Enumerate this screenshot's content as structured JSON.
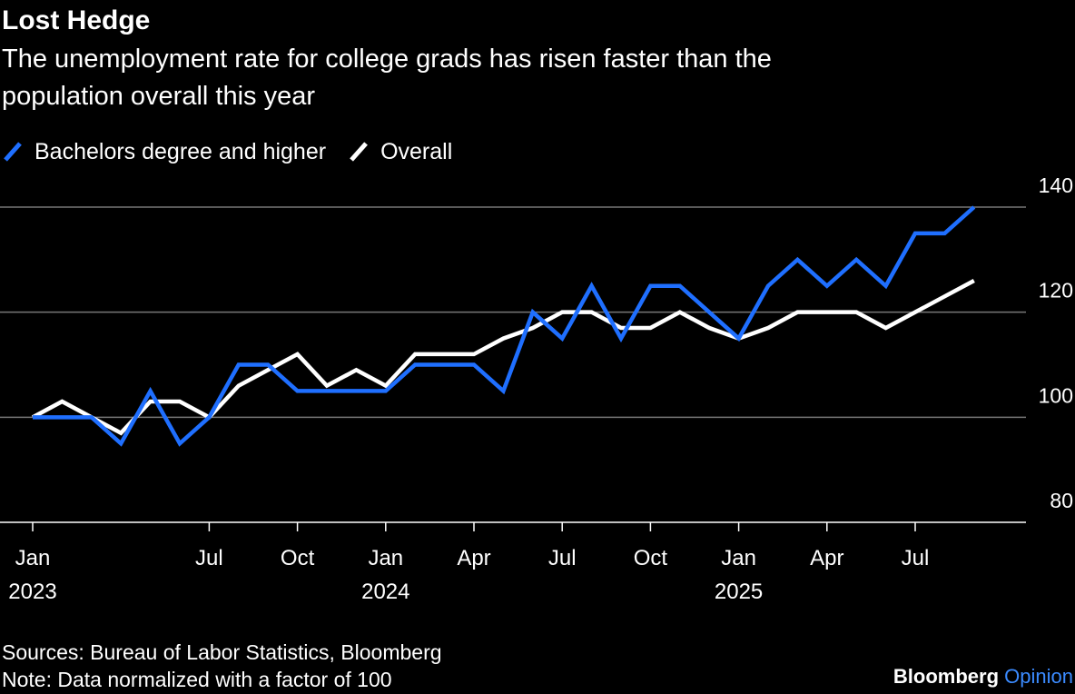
{
  "chart_data": {
    "type": "line",
    "title": "Lost Hedge",
    "subtitle": [
      "The unemployment rate for college grads has risen faster than the",
      "population overall this year"
    ],
    "x": [
      "2023-01",
      "2023-02",
      "2023-03",
      "2023-04",
      "2023-05",
      "2023-06",
      "2023-07",
      "2023-08",
      "2023-09",
      "2023-10",
      "2023-11",
      "2023-12",
      "2024-01",
      "2024-02",
      "2024-03",
      "2024-04",
      "2024-05",
      "2024-06",
      "2024-07",
      "2024-08",
      "2024-09",
      "2024-10",
      "2024-11",
      "2024-12",
      "2025-01",
      "2025-02",
      "2025-03",
      "2025-04",
      "2025-05",
      "2025-06",
      "2025-07",
      "2025-08",
      "2025-09"
    ],
    "series": [
      {
        "name": "Bachelors degree and higher",
        "color": "#1f6fff",
        "values": [
          100,
          100,
          100,
          95,
          105,
          95,
          100,
          110,
          110,
          105,
          105,
          105,
          105,
          110,
          110,
          110,
          105,
          120,
          115,
          125,
          115,
          125,
          125,
          120,
          115,
          125,
          130,
          125,
          130,
          125,
          135,
          135,
          140
        ]
      },
      {
        "name": "Overall",
        "color": "#ffffff",
        "values": [
          100,
          103,
          100,
          97,
          103,
          103,
          100,
          106,
          109,
          112,
          106,
          109,
          106,
          112,
          112,
          112,
          115,
          117,
          120,
          120,
          117,
          117,
          120,
          117,
          115,
          117,
          120,
          120,
          120,
          117,
          120,
          123,
          126
        ]
      }
    ],
    "ylim": [
      80,
      140
    ],
    "yticks": [
      80,
      100,
      120,
      140
    ],
    "xticks": [
      {
        "value": "2023-01",
        "label": "Jan"
      },
      {
        "value": "2023-07",
        "label": "Jul"
      },
      {
        "value": "2023-10",
        "label": "Oct"
      },
      {
        "value": "2024-01",
        "label": "Jan"
      },
      {
        "value": "2024-04",
        "label": "Apr"
      },
      {
        "value": "2024-07",
        "label": "Jul"
      },
      {
        "value": "2024-10",
        "label": "Oct"
      },
      {
        "value": "2025-01",
        "label": "Jan"
      },
      {
        "value": "2025-04",
        "label": "Apr"
      },
      {
        "value": "2025-07",
        "label": "Jul"
      }
    ],
    "xtick_years": [
      {
        "value": "2023-01",
        "label": "2023"
      },
      {
        "value": "2024-01",
        "label": "2024"
      },
      {
        "value": "2025-01",
        "label": "2025"
      }
    ],
    "grid": true,
    "legend": "top-left",
    "sources": "Sources: Bureau of Labor Statistics, Bloomberg",
    "note": "Note: Data normalized with a factor of 100",
    "brand": [
      "Bloomberg",
      "Opinion"
    ]
  }
}
